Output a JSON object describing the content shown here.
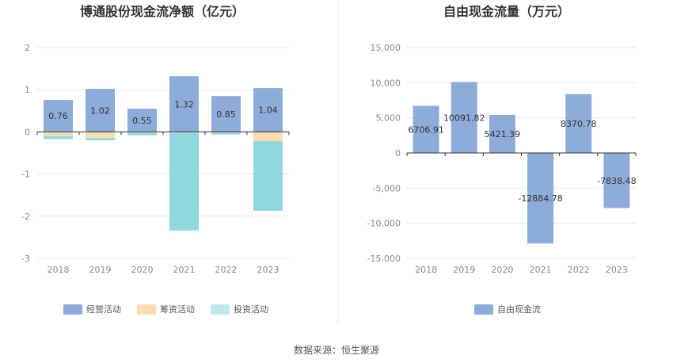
{
  "colors": {
    "operating": "#8eacda",
    "financing": "#fbdcae",
    "investing": "#8fd8dd",
    "investing_legend": "#c0e8eb",
    "fcf": "#8eacda",
    "grid": "#e6e6e6",
    "axis": "#333333",
    "divider": "#e8e8e8"
  },
  "source": "数据来源：恒生聚源",
  "chart_data": [
    {
      "type": "bar",
      "stacked": true,
      "title": "博通股份现金流净额（亿元）",
      "categories": [
        "2018",
        "2019",
        "2020",
        "2021",
        "2022",
        "2023"
      ],
      "ylim": [
        -3,
        2
      ],
      "yticks": [
        "2",
        "1",
        "0",
        "-1",
        "-2",
        "-3"
      ],
      "series": [
        {
          "name": "经营活动",
          "key": "operating",
          "values": [
            0.76,
            1.02,
            0.55,
            1.32,
            0.85,
            1.04
          ]
        },
        {
          "name": "筹资活动",
          "key": "financing",
          "values": [
            -0.1,
            -0.15,
            -0.02,
            -0.02,
            -0.02,
            -0.22
          ]
        },
        {
          "name": "投资活动",
          "key": "investing",
          "values": [
            -0.07,
            -0.05,
            -0.06,
            -2.32,
            -0.04,
            -1.65
          ]
        }
      ],
      "labels": [
        "0.76",
        "1.02",
        "0.55",
        "1.32",
        "0.85",
        "1.04"
      ],
      "legend": [
        "经营活动",
        "筹资活动",
        "投资活动"
      ]
    },
    {
      "type": "bar",
      "title": "自由现金流量（万元）",
      "categories": [
        "2018",
        "2019",
        "2020",
        "2021",
        "2022",
        "2023"
      ],
      "ylim": [
        -15000,
        15000
      ],
      "yticks": [
        "15,000",
        "10,000",
        "5,000",
        "0",
        "-5,000",
        "-10,000",
        "-15,000"
      ],
      "series": [
        {
          "name": "自由现金流",
          "key": "fcf",
          "values": [
            6706.91,
            10091.82,
            5421.39,
            -12884.78,
            8370.78,
            -7838.48
          ]
        }
      ],
      "labels": [
        "6706.91",
        "10091.82",
        "5421.39",
        "-12884.78",
        "8370.78",
        "-7838.48"
      ],
      "legend": [
        "自由现金流"
      ]
    }
  ]
}
